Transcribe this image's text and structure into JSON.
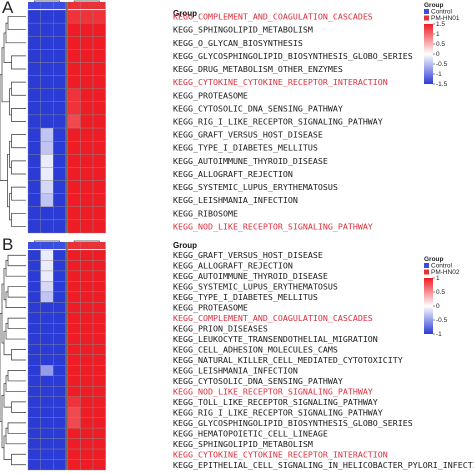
{
  "colors": {
    "low": "#2b3bd6",
    "mid": "#ffffff",
    "high": "#ee1c24",
    "control": "#3b4ee0",
    "treatment": "#e8323a",
    "highlight": "#d9303e"
  },
  "chart_data": [
    {
      "type": "heatmap",
      "panel": "A",
      "group_label": "Group",
      "legend_entries": [
        "Control",
        "PM-HN01"
      ],
      "colorbar_ticks": [
        1.5,
        1,
        0.5,
        0,
        -0.5,
        -1,
        -1.5
      ],
      "columns": [
        "Control",
        "Control",
        "Control",
        "PM-HN01",
        "PM-HN01",
        "PM-HN01"
      ],
      "rows": [
        {
          "label": "KEGG_COMPLEMENT_AND_COAGULATION_CASCADES",
          "hl": true,
          "values": [
            -1.2,
            -1.2,
            -1.2,
            0.9,
            0.9,
            0.9
          ]
        },
        {
          "label": "KEGG_SPHINGOLIPID_METABOLISM",
          "hl": false,
          "values": [
            -1.1,
            -1.1,
            -1.1,
            1.0,
            1.0,
            1.0
          ]
        },
        {
          "label": "KEGG_O_GLYCAN_BIOSYNTHESIS",
          "hl": false,
          "values": [
            -1.0,
            -1.1,
            -1.1,
            1.0,
            1.0,
            1.0
          ]
        },
        {
          "label": "KEGG_GLYCOSPHINGOLIPID_BIOSYNTHESIS_GLOBO_SERIES",
          "hl": false,
          "values": [
            -1.0,
            -1.0,
            -1.0,
            1.0,
            1.0,
            1.0
          ]
        },
        {
          "label": "KEGG_DRUG_METABOLISM_OTHER_ENZYMES",
          "hl": false,
          "values": [
            -1.0,
            -1.0,
            -1.0,
            1.0,
            1.0,
            1.0
          ]
        },
        {
          "label": "KEGG_CYTOKINE_CYTOKINE_RECEPTOR_INTERACTION",
          "hl": true,
          "values": [
            -1.0,
            -1.0,
            -1.0,
            1.0,
            1.0,
            1.0
          ]
        },
        {
          "label": "KEGG_PROTEASOME",
          "hl": false,
          "values": [
            -1.0,
            -1.0,
            -1.0,
            0.9,
            1.1,
            1.1
          ]
        },
        {
          "label": "KEGG_CYTOSOLIC_DNA_SENSING_PATHWAY",
          "hl": false,
          "values": [
            -1.0,
            -1.0,
            -1.0,
            0.9,
            1.1,
            1.1
          ]
        },
        {
          "label": "KEGG_RIG_I_LIKE_RECEPTOR_SIGNALING_PATHWAY",
          "hl": false,
          "values": [
            -1.0,
            -1.0,
            -1.0,
            0.8,
            1.1,
            1.2
          ]
        },
        {
          "label": "KEGG_GRAFT_VERSUS_HOST_DISEASE",
          "hl": false,
          "values": [
            -1.0,
            -0.3,
            -1.0,
            1.0,
            1.0,
            1.0
          ]
        },
        {
          "label": "KEGG_TYPE_I_DIABETES_MELLITUS",
          "hl": false,
          "values": [
            -1.0,
            -0.3,
            -1.0,
            1.0,
            1.0,
            1.0
          ]
        },
        {
          "label": "KEGG_AUTOIMMUNE_THYROID_DISEASE",
          "hl": false,
          "values": [
            -1.0,
            -0.1,
            -1.0,
            1.0,
            1.0,
            1.0
          ]
        },
        {
          "label": "KEGG_ALLOGRAFT_REJECTION",
          "hl": false,
          "values": [
            -1.0,
            -0.1,
            -1.0,
            1.0,
            1.0,
            1.0
          ]
        },
        {
          "label": "KEGG_SYSTEMIC_LUPUS_ERYTHEMATOSUS",
          "hl": false,
          "values": [
            -1.0,
            -0.2,
            -1.0,
            1.0,
            1.0,
            1.0
          ]
        },
        {
          "label": "KEGG_LEISHMANIA_INFECTION",
          "hl": false,
          "values": [
            -1.0,
            -0.3,
            -1.0,
            1.0,
            1.0,
            1.0
          ]
        },
        {
          "label": "KEGG_RIBOSOME",
          "hl": false,
          "values": [
            -1.0,
            -1.0,
            -1.0,
            1.0,
            1.0,
            1.0
          ]
        },
        {
          "label": "KEGG_NOD_LIKE_RECEPTOR_SIGNALING_PATHWAY",
          "hl": true,
          "values": [
            -1.0,
            -1.0,
            -1.0,
            1.0,
            1.0,
            1.0
          ]
        }
      ]
    },
    {
      "type": "heatmap",
      "panel": "B",
      "group_label": "Group",
      "legend_entries": [
        "Control",
        "PM-HN02"
      ],
      "colorbar_ticks": [
        1,
        0.5,
        0,
        -0.5,
        -1
      ],
      "columns": [
        "Control",
        "Control",
        "Control",
        "PM-HN02",
        "PM-HN02",
        "PM-HN02"
      ],
      "rows": [
        {
          "label": "KEGG_GRAFT_VERSUS_HOST_DISEASE",
          "hl": false,
          "values": [
            -1.0,
            -0.1,
            -1.0,
            1.0,
            1.0,
            1.0
          ]
        },
        {
          "label": "KEGG_ALLOGRAFT_REJECTION",
          "hl": false,
          "values": [
            -1.0,
            -0.1,
            -1.0,
            1.0,
            1.0,
            1.0
          ]
        },
        {
          "label": "KEGG_AUTOIMMUNE_THYROID_DISEASE",
          "hl": false,
          "values": [
            -1.0,
            -0.1,
            -1.0,
            1.0,
            1.0,
            1.0
          ]
        },
        {
          "label": "KEGG_SYSTEMIC_LUPUS_ERYTHEMATOSUS",
          "hl": false,
          "values": [
            -1.0,
            -0.2,
            -1.0,
            1.0,
            1.0,
            1.0
          ]
        },
        {
          "label": "KEGG_TYPE_I_DIABETES_MELLITUS",
          "hl": false,
          "values": [
            -1.0,
            -0.3,
            -1.0,
            1.0,
            1.0,
            1.0
          ]
        },
        {
          "label": "KEGG_PROTEASOME",
          "hl": false,
          "values": [
            -1.0,
            -1.0,
            -1.0,
            1.0,
            1.0,
            1.0
          ]
        },
        {
          "label": "KEGG_COMPLEMENT_AND_COAGULATION_CASCADES",
          "hl": true,
          "values": [
            -1.0,
            -1.0,
            -1.0,
            1.0,
            1.0,
            1.0
          ]
        },
        {
          "label": "KEGG_PRION_DISEASES",
          "hl": false,
          "values": [
            -1.0,
            -1.0,
            -1.0,
            1.0,
            1.0,
            1.0
          ]
        },
        {
          "label": "KEGG_LEUKOCYTE_TRANSENDOTHELIAL_MIGRATION",
          "hl": false,
          "values": [
            -1.0,
            -1.0,
            -1.0,
            1.0,
            1.0,
            1.0
          ]
        },
        {
          "label": "KEGG_CELL_ADHESION_MOLECULES_CAMS",
          "hl": false,
          "values": [
            -1.0,
            -1.0,
            -1.0,
            1.0,
            1.0,
            1.0
          ]
        },
        {
          "label": "KEGG_NATURAL_KILLER_CELL_MEDIATED_CYTOTOXICITY",
          "hl": false,
          "values": [
            -1.0,
            -1.0,
            -1.0,
            1.0,
            1.0,
            1.0
          ]
        },
        {
          "label": "KEGG_LEISHMANIA_INFECTION",
          "hl": false,
          "values": [
            -1.0,
            -0.5,
            -1.0,
            1.0,
            1.0,
            1.0
          ]
        },
        {
          "label": "KEGG_CYTOSOLIC_DNA_SENSING_PATHWAY",
          "hl": false,
          "values": [
            -1.0,
            -1.0,
            -1.0,
            1.0,
            1.0,
            1.0
          ]
        },
        {
          "label": "KEGG_NOD_LIKE_RECEPTOR_SIGNALING_PATHWAY",
          "hl": true,
          "values": [
            -1.0,
            -1.0,
            -1.0,
            1.0,
            1.0,
            1.0
          ]
        },
        {
          "label": "KEGG_TOLL_LIKE_RECEPTOR_SIGNALING_PATHWAY",
          "hl": false,
          "values": [
            -1.0,
            -1.0,
            -1.0,
            0.9,
            1.0,
            1.0
          ]
        },
        {
          "label": "KEGG_RIG_I_LIKE_RECEPTOR_SIGNALING_PATHWAY",
          "hl": false,
          "values": [
            -1.0,
            -1.0,
            -1.0,
            0.8,
            1.0,
            1.1
          ]
        },
        {
          "label": "KEGG_GLYCOSPHINGOLIPID_BIOSYNTHESIS_GLOBO_SERIES",
          "hl": false,
          "values": [
            -1.0,
            -1.0,
            -1.0,
            0.8,
            1.1,
            1.1
          ]
        },
        {
          "label": "KEGG_HEMATOPOIETIC_CELL_LINEAGE",
          "hl": false,
          "values": [
            -1.0,
            -1.0,
            -1.0,
            1.0,
            1.0,
            1.0
          ]
        },
        {
          "label": "KEGG_SPHINGOLIPID_METABOLISM",
          "hl": false,
          "values": [
            -1.0,
            -1.0,
            -1.0,
            1.0,
            1.0,
            1.0
          ]
        },
        {
          "label": "KEGG_CYTOKINE_CYTOKINE_RECEPTOR_INTERACTION",
          "hl": true,
          "values": [
            -1.0,
            -1.0,
            -1.0,
            1.0,
            1.0,
            1.0
          ]
        },
        {
          "label": "KEGG_EPITHELIAL_CELL_SIGNALING_IN_HELICOBACTER_PYLORI_INFECTION",
          "hl": false,
          "values": [
            -1.0,
            -1.0,
            -1.0,
            1.0,
            1.0,
            1.0
          ]
        }
      ]
    }
  ]
}
